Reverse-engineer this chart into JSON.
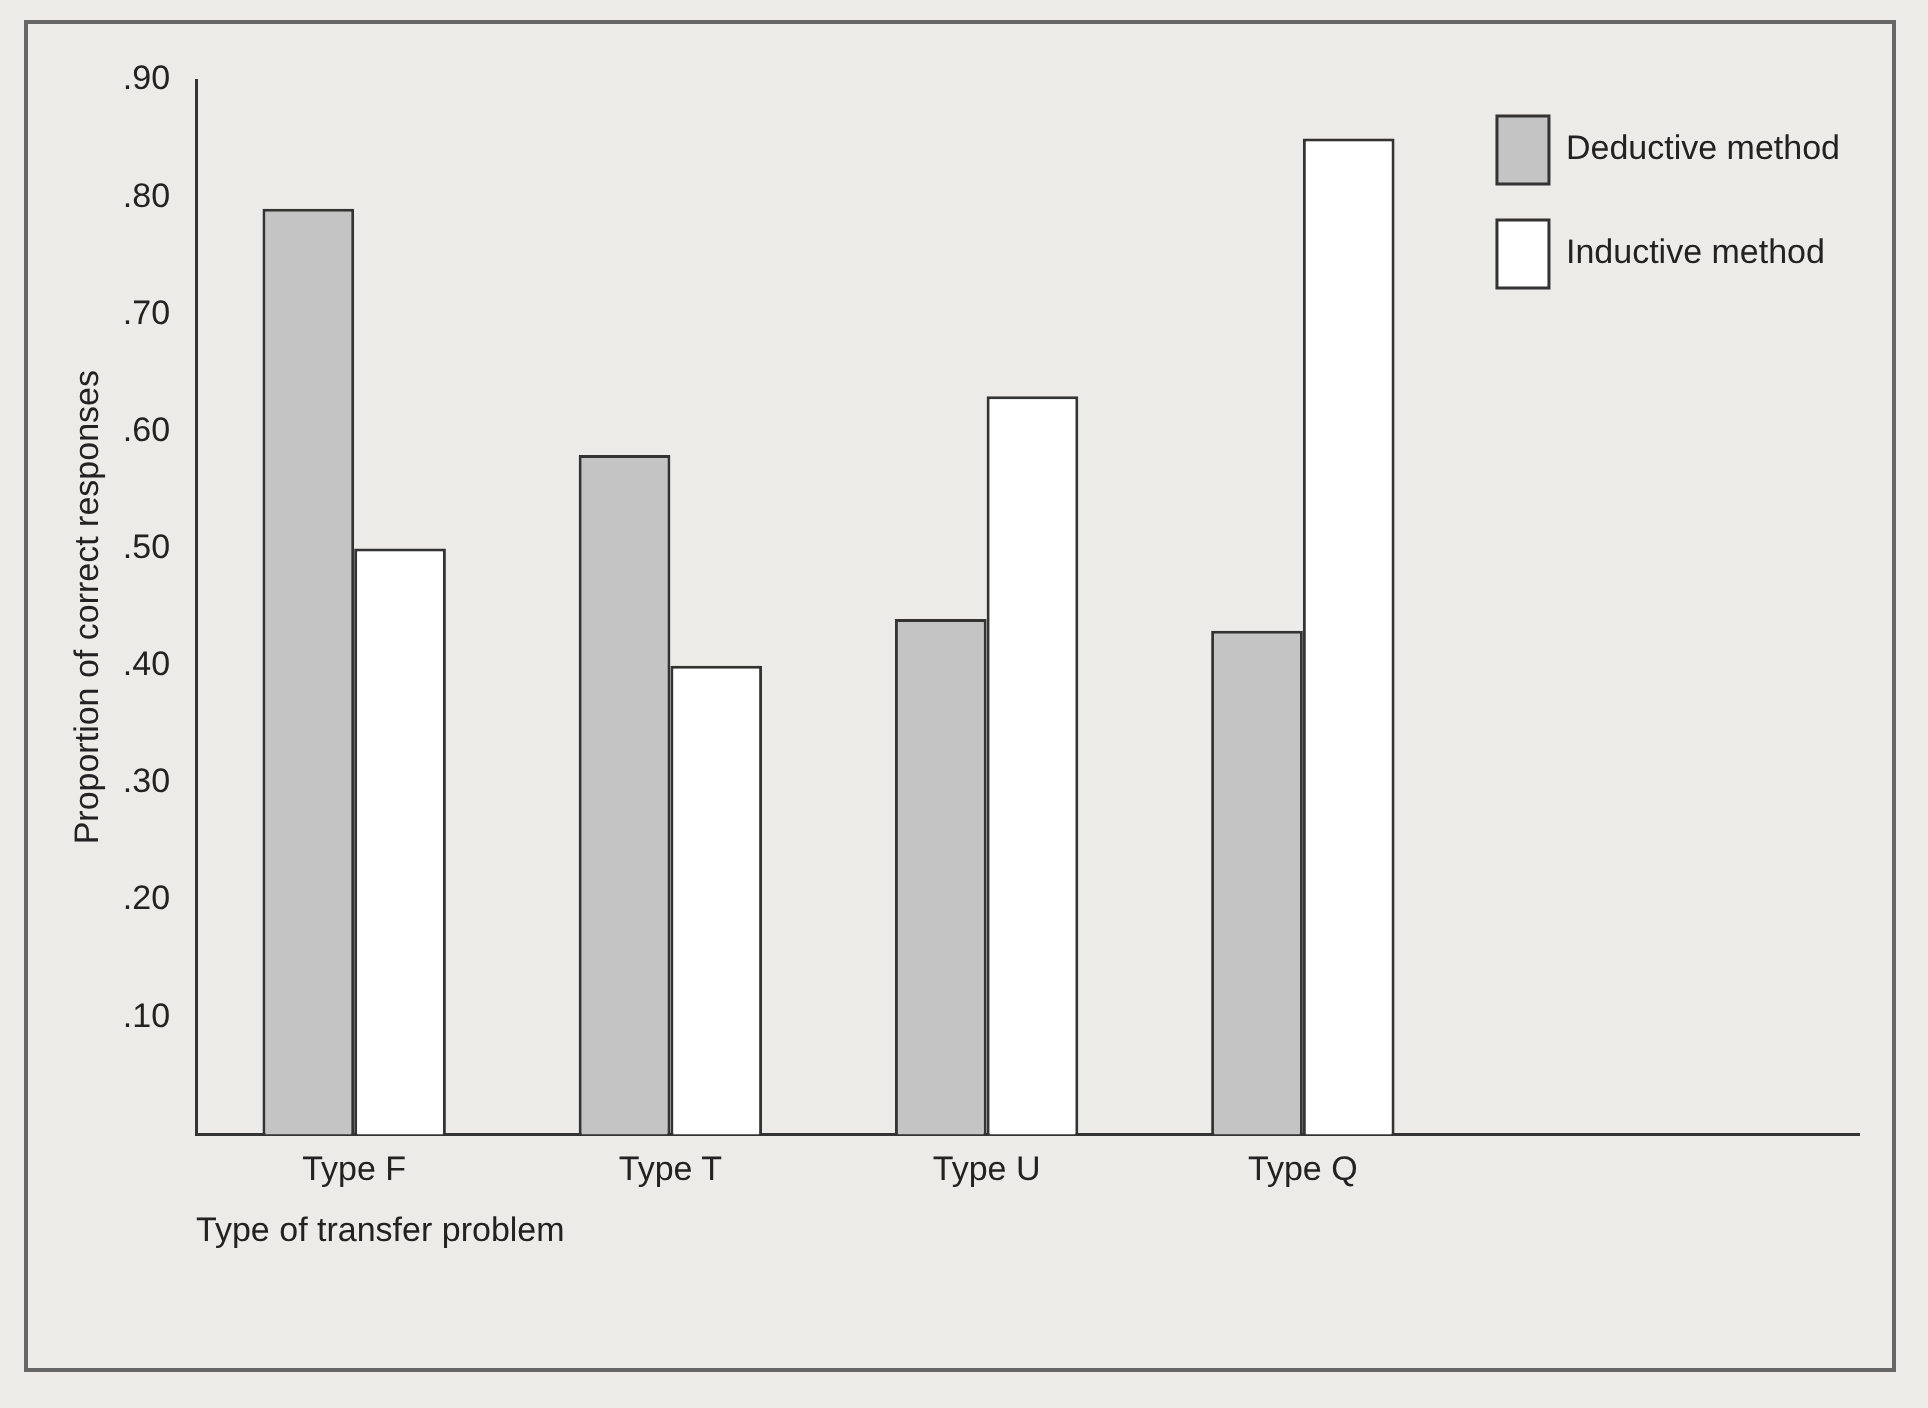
{
  "chart_data": {
    "type": "bar",
    "xlabel": "Type of transfer problem",
    "ylabel": "Proportion of correct responses",
    "categories": [
      "Type F",
      "Type T",
      "Type U",
      "Type Q"
    ],
    "series": [
      {
        "name": "Deductive method",
        "color": "#c4c4c4",
        "values": [
          0.79,
          0.58,
          0.44,
          0.43
        ]
      },
      {
        "name": "Inductive method",
        "color": "#ffffff",
        "values": [
          0.5,
          0.4,
          0.63,
          0.85
        ]
      }
    ],
    "ylim": [
      0,
      0.9
    ],
    "yticks": [
      {
        "value": 0,
        "label": null
      },
      {
        "value": 0.1,
        "label": ".10"
      },
      {
        "value": 0.2,
        "label": ".20"
      },
      {
        "value": 0.3,
        "label": ".30"
      },
      {
        "value": 0.4,
        "label": ".40"
      },
      {
        "value": 0.5,
        "label": ".50"
      },
      {
        "value": 0.6,
        "label": ".60"
      },
      {
        "value": 0.7,
        "label": ".70"
      },
      {
        "value": 0.8,
        "label": ".80"
      },
      {
        "value": 0.9,
        "label": ".90"
      }
    ],
    "grid": false,
    "legend": "top right"
  }
}
